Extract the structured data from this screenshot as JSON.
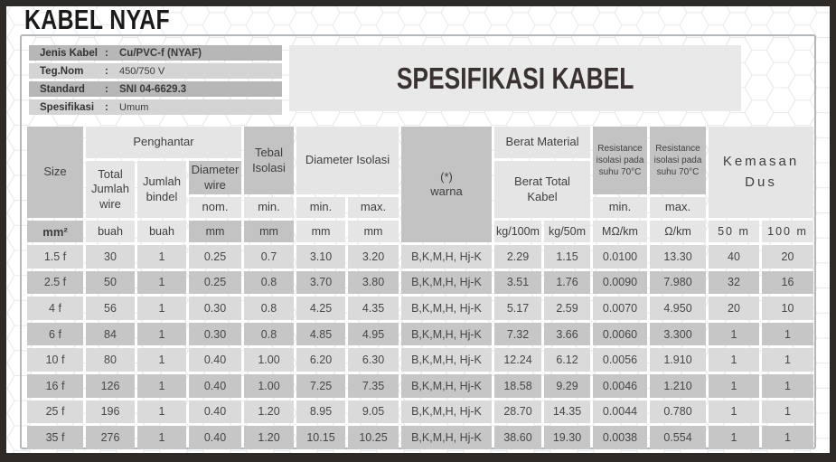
{
  "page_title": "KABEL NYAF",
  "info": {
    "rows": [
      {
        "label": "Jenis Kabel",
        "colon": ":",
        "value": "Cu/PVC-f (NYAF)"
      },
      {
        "label": "Teg.Nom",
        "colon": ":",
        "value": "450/750 V"
      },
      {
        "label": "Standard",
        "colon": ":",
        "value": "SNI 04-6629.3"
      },
      {
        "label": "Spesifikasi",
        "colon": ":",
        "value": "Umum"
      }
    ]
  },
  "spec_title": "SPESIFIKASI KABEL",
  "table": {
    "headers": {
      "size": "Size",
      "penghantar": "Penghantar",
      "total_jumlah_wire": "Total Jumlah wire",
      "jumlah_bindel": "Jumlah bindel",
      "diameter_wire": "Diameter wire",
      "nom": "nom.",
      "tebal_isolasi": "Tebal Isolasi",
      "min": "min.",
      "max": "max.",
      "diameter_isolasi": "Diameter Isolasi",
      "warna": "(*)\nwarna",
      "berat_material": "Berat Material",
      "berat_total_kabel": "Berat Total Kabel",
      "resistance_min": "Resistance isolasi pada suhu 70°C",
      "resistance_max": "Resistance isolasi pada suhu 70°C",
      "kemasan_dus": "Kemasan Dus"
    },
    "units": [
      {
        "label": "mm²",
        "col": 1,
        "dark": true,
        "bold": true
      },
      {
        "label": "buah",
        "col": 2
      },
      {
        "label": "buah",
        "col": 3
      },
      {
        "label": "mm",
        "col": 4,
        "dark": true
      },
      {
        "label": "mm",
        "col": 5,
        "dark": true
      },
      {
        "label": "mm",
        "col": 6
      },
      {
        "label": "mm",
        "col": 7
      },
      {
        "label": "kg/100m",
        "col": 9
      },
      {
        "label": "kg/50m",
        "col": 10
      },
      {
        "label": "MΩ/km",
        "col": 11
      },
      {
        "label": "Ω/km",
        "col": 12
      },
      {
        "label": "50 m",
        "col": 13,
        "spaced": true
      },
      {
        "label": "100 m",
        "col": 14,
        "spaced": true
      }
    ],
    "rows": [
      [
        "1.5 f",
        "30",
        "1",
        "0.25",
        "0.7",
        "3.10",
        "3.20",
        "B,K,M,H, Hj-K",
        "2.29",
        "1.15",
        "0.0100",
        "13.30",
        "40",
        "20"
      ],
      [
        "2.5 f",
        "50",
        "1",
        "0.25",
        "0.8",
        "3.70",
        "3.80",
        "B,K,M,H, Hj-K",
        "3.51",
        "1.76",
        "0.0090",
        "7.980",
        "32",
        "16"
      ],
      [
        "4 f",
        "56",
        "1",
        "0.30",
        "0.8",
        "4.25",
        "4.35",
        "B,K,M,H, Hj-K",
        "5.17",
        "2.59",
        "0.0070",
        "4.950",
        "20",
        "10"
      ],
      [
        "6 f",
        "84",
        "1",
        "0.30",
        "0.8",
        "4.85",
        "4.95",
        "B,K,M,H, Hj-K",
        "7.32",
        "3.66",
        "0.0060",
        "3.300",
        "1",
        "1"
      ],
      [
        "10 f",
        "80",
        "1",
        "0.40",
        "1.00",
        "6.20",
        "6.30",
        "B,K,M,H, Hj-K",
        "12.24",
        "6.12",
        "0.0056",
        "1.910",
        "1",
        "1"
      ],
      [
        "16 f",
        "126",
        "1",
        "0.40",
        "1.00",
        "7.25",
        "7.35",
        "B,K,M,H, Hj-K",
        "18.58",
        "9.29",
        "0.0046",
        "1.210",
        "1",
        "1"
      ],
      [
        "25 f",
        "196",
        "1",
        "0.40",
        "1.20",
        "8.95",
        "9.05",
        "B,K,M,H, Hj-K",
        "28.70",
        "14.35",
        "0.0044",
        "0.780",
        "1",
        "1"
      ],
      [
        "35 f",
        "276",
        "1",
        "0.40",
        "1.20",
        "10.15",
        "10.25",
        "B,K,M,H, Hj-K",
        "38.60",
        "19.30",
        "0.0038",
        "0.554",
        "1",
        "1"
      ]
    ]
  },
  "colors": {
    "frame": "#2e2a27",
    "header_dark": "#c3c3c3",
    "header_light": "#e5e5e5",
    "row_light": "#dadada",
    "row_dark": "#c6c6c6",
    "info_row_dark": "#b7b7b7",
    "info_row_light": "#d4d4d4",
    "spec_box": "#e9e9e9",
    "hex_pattern_stroke": "#e6eaed"
  }
}
